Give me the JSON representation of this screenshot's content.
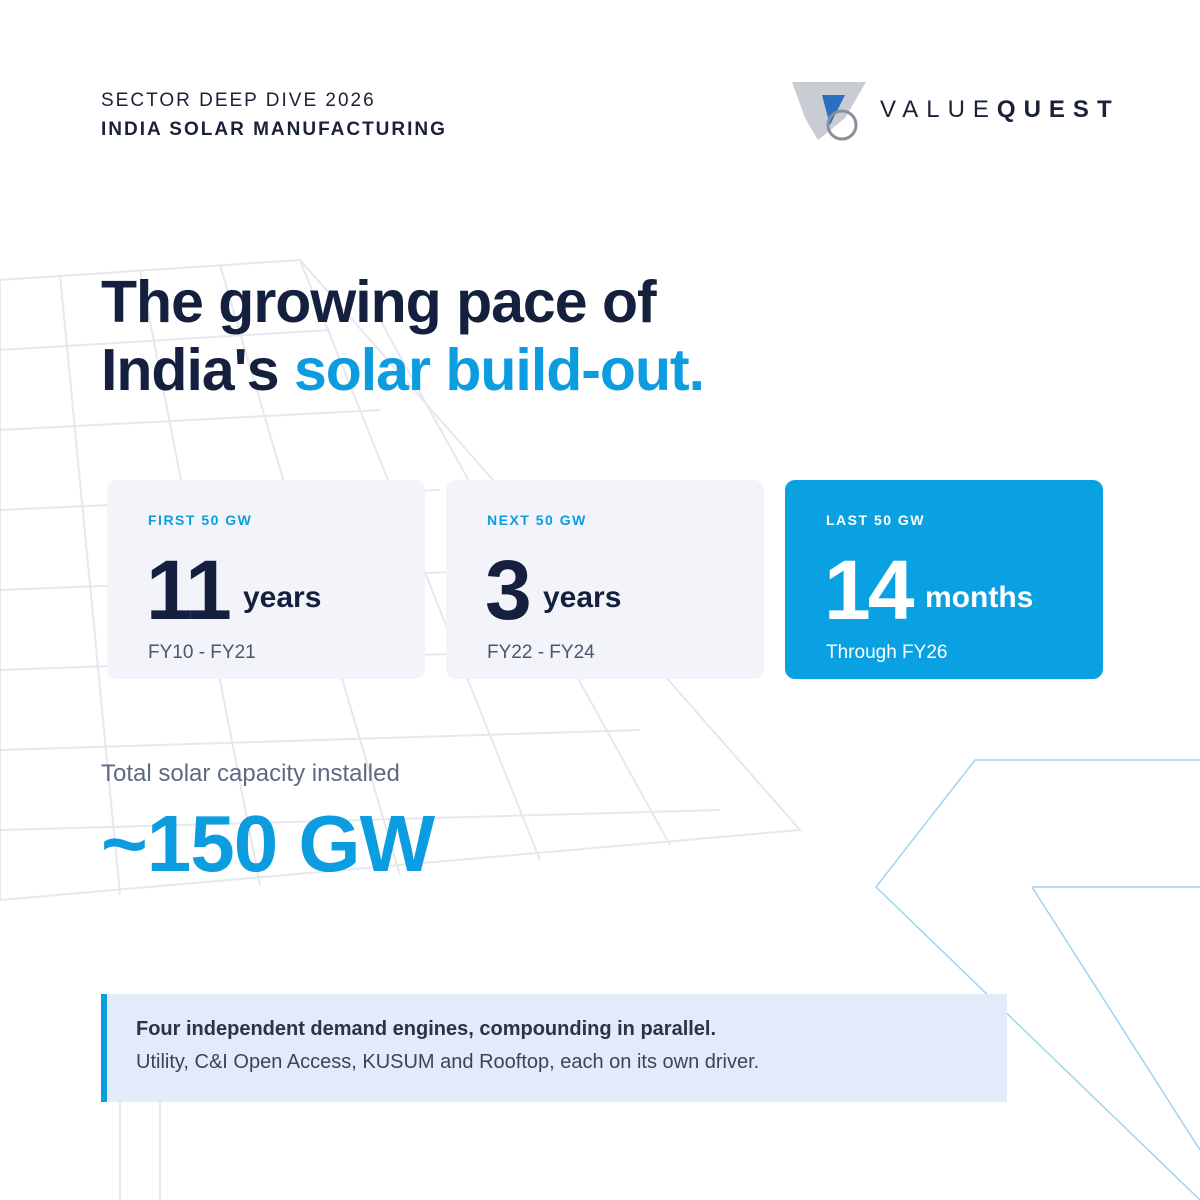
{
  "header": {
    "kicker": "SECTOR DEEP DIVE 2026",
    "subtitle": "INDIA SOLAR MANUFACTURING"
  },
  "logo": {
    "light": "VALUE",
    "bold": "QUEST"
  },
  "headline": {
    "line1": "The growing pace of",
    "line2_dark": "India's",
    "line2_accent": "solar build-out."
  },
  "cards": [
    {
      "label": "FIRST 50 GW",
      "number": 11,
      "unit": "years",
      "period": "FY10 - FY21"
    },
    {
      "label": "NEXT 50 GW",
      "number": 3,
      "unit": "years",
      "period": "FY22 - FY24"
    },
    {
      "label": "LAST 50 GW",
      "number": 14,
      "unit": "months",
      "period": "Through FY26"
    }
  ],
  "total": {
    "label": "Total solar capacity installed",
    "value": "~150 GW"
  },
  "callout": {
    "heading": "Four independent demand engines, compounding in parallel.",
    "text": "Utility, C&I Open Access, KUSUM and Rooftop, each on its own driver."
  }
}
